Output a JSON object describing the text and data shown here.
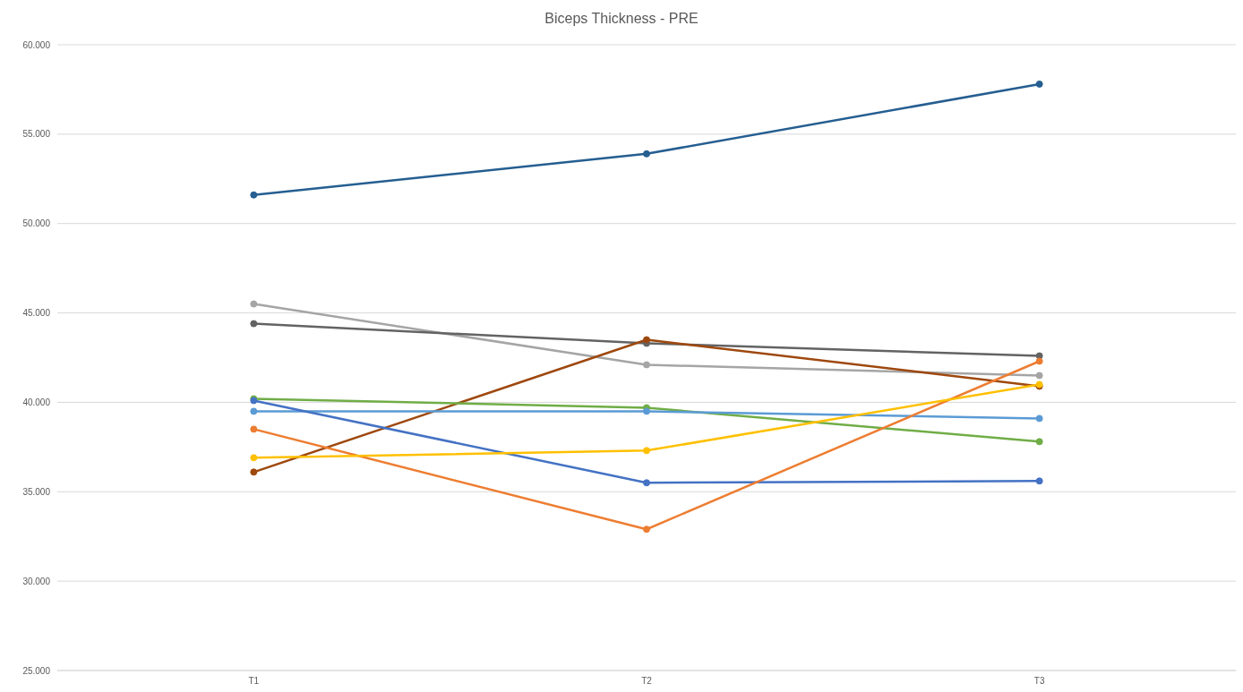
{
  "chart_data": {
    "type": "line",
    "title": "Biceps Thickness - PRE",
    "categories": [
      "T1",
      "T2",
      "T3"
    ],
    "series": [
      {
        "color": "#255e91",
        "values": [
          51.6,
          53.9,
          57.8
        ]
      },
      {
        "color": "#a5a5a5",
        "values": [
          45.5,
          42.1,
          41.5
        ]
      },
      {
        "color": "#636363",
        "values": [
          44.4,
          43.3,
          42.6
        ]
      },
      {
        "color": "#9e480e",
        "values": [
          36.1,
          43.5,
          40.9
        ]
      },
      {
        "color": "#70ad47",
        "values": [
          40.2,
          39.7,
          37.8
        ]
      },
      {
        "color": "#5b9bd5",
        "values": [
          39.5,
          39.5,
          39.1
        ]
      },
      {
        "color": "#4472c4",
        "values": [
          40.1,
          35.5,
          35.6
        ]
      },
      {
        "color": "#ed7d31",
        "values": [
          38.5,
          32.9,
          42.3
        ]
      },
      {
        "color": "#ffc000",
        "values": [
          36.9,
          37.3,
          41.0
        ]
      }
    ],
    "ylim": [
      25,
      60
    ],
    "yticks": [
      {
        "value": 25,
        "label": "25.000"
      },
      {
        "value": 30,
        "label": "30.000"
      },
      {
        "value": 35,
        "label": "35.000"
      },
      {
        "value": 40,
        "label": "40.000"
      },
      {
        "value": 45,
        "label": "45.000"
      },
      {
        "value": 50,
        "label": "50.000"
      },
      {
        "value": 55,
        "label": "55.000"
      },
      {
        "value": 60,
        "label": "60.000"
      }
    ],
    "grid": "y",
    "marker": "circle",
    "line_style": "solid"
  }
}
